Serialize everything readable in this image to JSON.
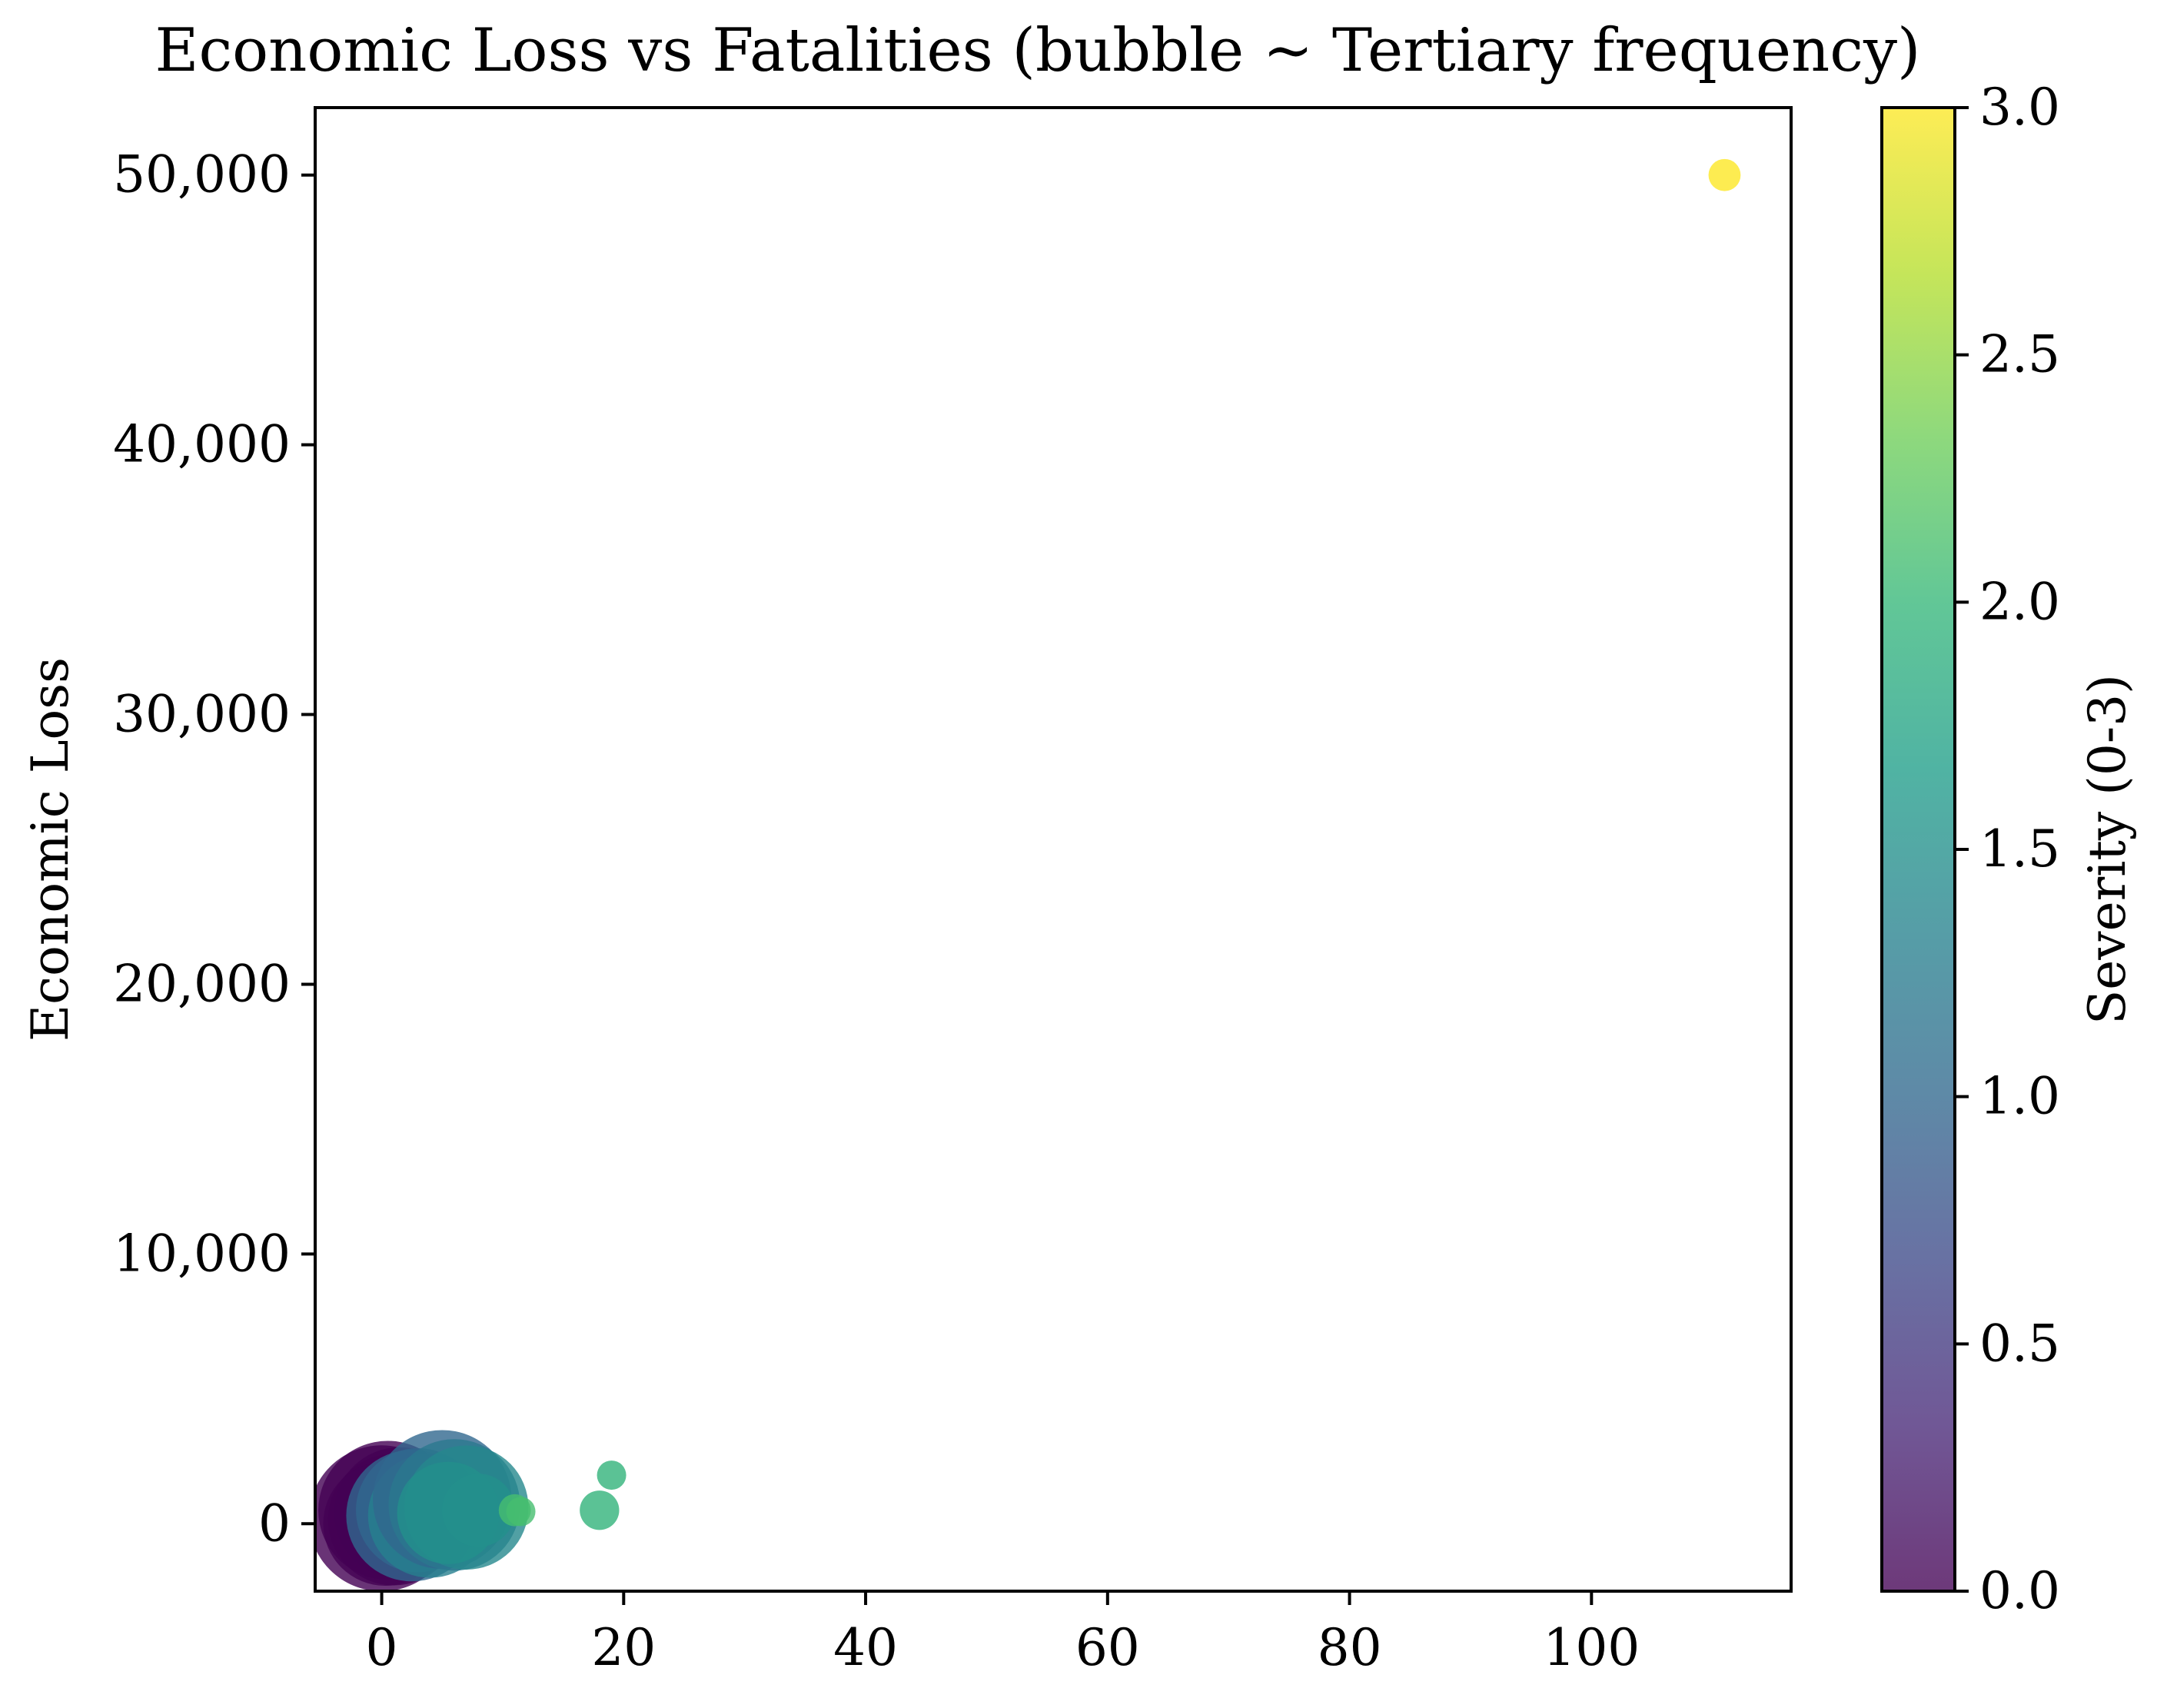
{
  "chart_data": {
    "type": "scatter",
    "title": "Economic Loss vs Fatalities (bubble ~ Tertiary frequency)",
    "xlabel": "",
    "ylabel": "Economic Loss",
    "xlim": [
      -5.5,
      116.5
    ],
    "ylim": [
      -2500,
      52500
    ],
    "x_ticks": [
      0,
      20,
      40,
      60,
      80,
      100
    ],
    "x_tick_labels": [
      "0",
      "20",
      "40",
      "60",
      "80",
      "100"
    ],
    "y_ticks": [
      0,
      10000,
      20000,
      30000,
      40000,
      50000
    ],
    "y_tick_labels": [
      "0",
      "10,000",
      "20,000",
      "30,000",
      "40,000",
      "50,000"
    ],
    "grid": false,
    "colorbar": {
      "label": "Severity (0-3)",
      "range": [
        0,
        3
      ],
      "ticks": [
        0,
        0.5,
        1,
        1.5,
        2,
        2.5,
        3
      ],
      "tick_labels": [
        "0.0",
        "0.5",
        "1.0",
        "1.5",
        "2.0",
        "2.5",
        "3.0"
      ],
      "colormap": "viridis",
      "stops": [
        "#440154",
        "#482878",
        "#3e4989",
        "#31688e",
        "#26828e",
        "#1f9e89",
        "#35b779",
        "#6ece58",
        "#b5de2b",
        "#fde725"
      ]
    },
    "size_encoding": "Tertiary frequency",
    "points": [
      {
        "x": 0,
        "y": 200,
        "severity": 0,
        "size": 1.0
      },
      {
        "x": 0.5,
        "y": 500,
        "severity": 0,
        "size": 0.95
      },
      {
        "x": 1,
        "y": 150,
        "severity": 0,
        "size": 0.9
      },
      {
        "x": 1.5,
        "y": 400,
        "severity": 0,
        "size": 0.9
      },
      {
        "x": 0.3,
        "y": 0,
        "severity": 0,
        "size": 0.85
      },
      {
        "x": 2,
        "y": 100,
        "severity": 0,
        "size": 0.35
      },
      {
        "x": 2.5,
        "y": 300,
        "severity": 1.0,
        "size": 0.9
      },
      {
        "x": 3,
        "y": 500,
        "severity": 1.0,
        "size": 0.85
      },
      {
        "x": 4,
        "y": 300,
        "severity": 1.3,
        "size": 0.85
      },
      {
        "x": 5,
        "y": 900,
        "severity": 1.0,
        "size": 0.95
      },
      {
        "x": 6,
        "y": 700,
        "severity": 1.2,
        "size": 0.9
      },
      {
        "x": 7,
        "y": 600,
        "severity": 1.4,
        "size": 0.85
      },
      {
        "x": 5.5,
        "y": 400,
        "severity": 1.5,
        "size": 0.7
      },
      {
        "x": 8,
        "y": 500,
        "severity": 1.5,
        "size": 0.5
      },
      {
        "x": 11,
        "y": 500,
        "severity": 2.1,
        "size": 0.22
      },
      {
        "x": 11.5,
        "y": 450,
        "severity": 2.1,
        "size": 0.2
      },
      {
        "x": 18,
        "y": 500,
        "severity": 1.95,
        "size": 0.27
      },
      {
        "x": 19,
        "y": 1800,
        "severity": 1.95,
        "size": 0.2
      },
      {
        "x": 111,
        "y": 50000,
        "severity": 3.0,
        "size": 0.22
      }
    ]
  }
}
